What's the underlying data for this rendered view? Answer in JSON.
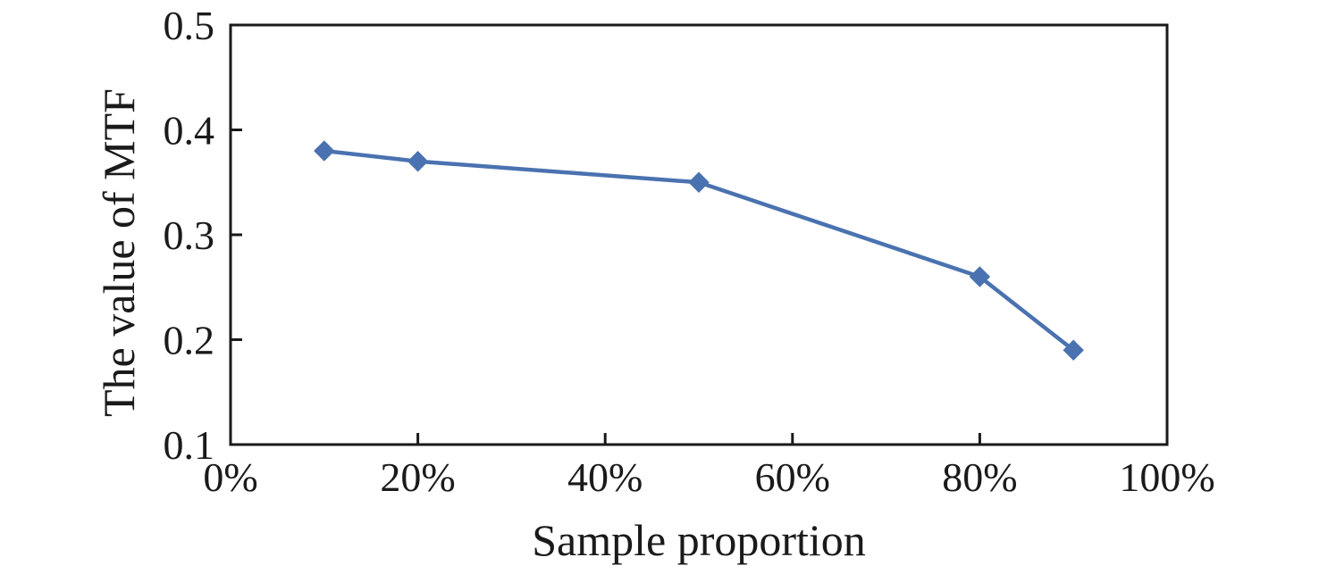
{
  "chart_data": {
    "type": "line",
    "title": "",
    "xlabel": "Sample proportion",
    "ylabel": "The value of MTF",
    "x": [
      10,
      20,
      50,
      80,
      90
    ],
    "y": [
      0.38,
      0.37,
      0.35,
      0.26,
      0.19
    ],
    "xlim": [
      0,
      100
    ],
    "ylim": [
      0.1,
      0.5
    ],
    "xticks": [
      0,
      20,
      40,
      60,
      80,
      100
    ],
    "xtick_suffix": "%",
    "yticks": [
      0.1,
      0.2,
      0.3,
      0.4,
      0.5
    ],
    "ytick_decimals": 1,
    "line_color": "#4a72b0",
    "marker": "diamond",
    "marker_color": "#4a72b0",
    "axis_color": "#1a1a1a",
    "background_color": "#ffffff",
    "grid": false,
    "legend": "none"
  }
}
